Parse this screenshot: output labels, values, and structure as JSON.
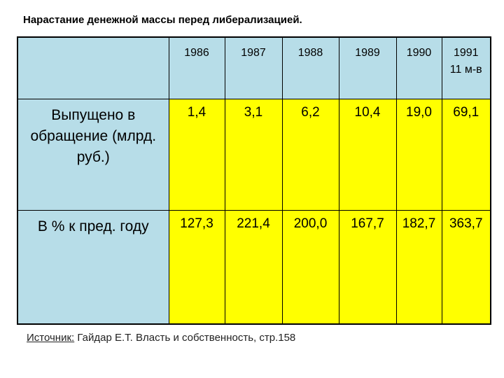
{
  "title": "Нарастание денежной массы перед либерализацией.",
  "table": {
    "columns": [
      "1986",
      "1987",
      "1988",
      "1989",
      "1990",
      "1991"
    ],
    "last_column_note": "11 м-в",
    "rows": [
      {
        "label": "Выпущено в обращение (млрд. руб.)",
        "cells": [
          "1,4",
          "3,1",
          "6,2",
          "10,4",
          "19,0",
          "69,1"
        ]
      },
      {
        "label": "В % к пред. году",
        "cells": [
          "127,3",
          "221,4",
          "200,0",
          "167,7",
          "182,7",
          "363,7"
        ]
      }
    ]
  },
  "source": {
    "label": "Источник:",
    "text": "Гайдар Е.Т. Власть и собственность, стр.158"
  }
}
